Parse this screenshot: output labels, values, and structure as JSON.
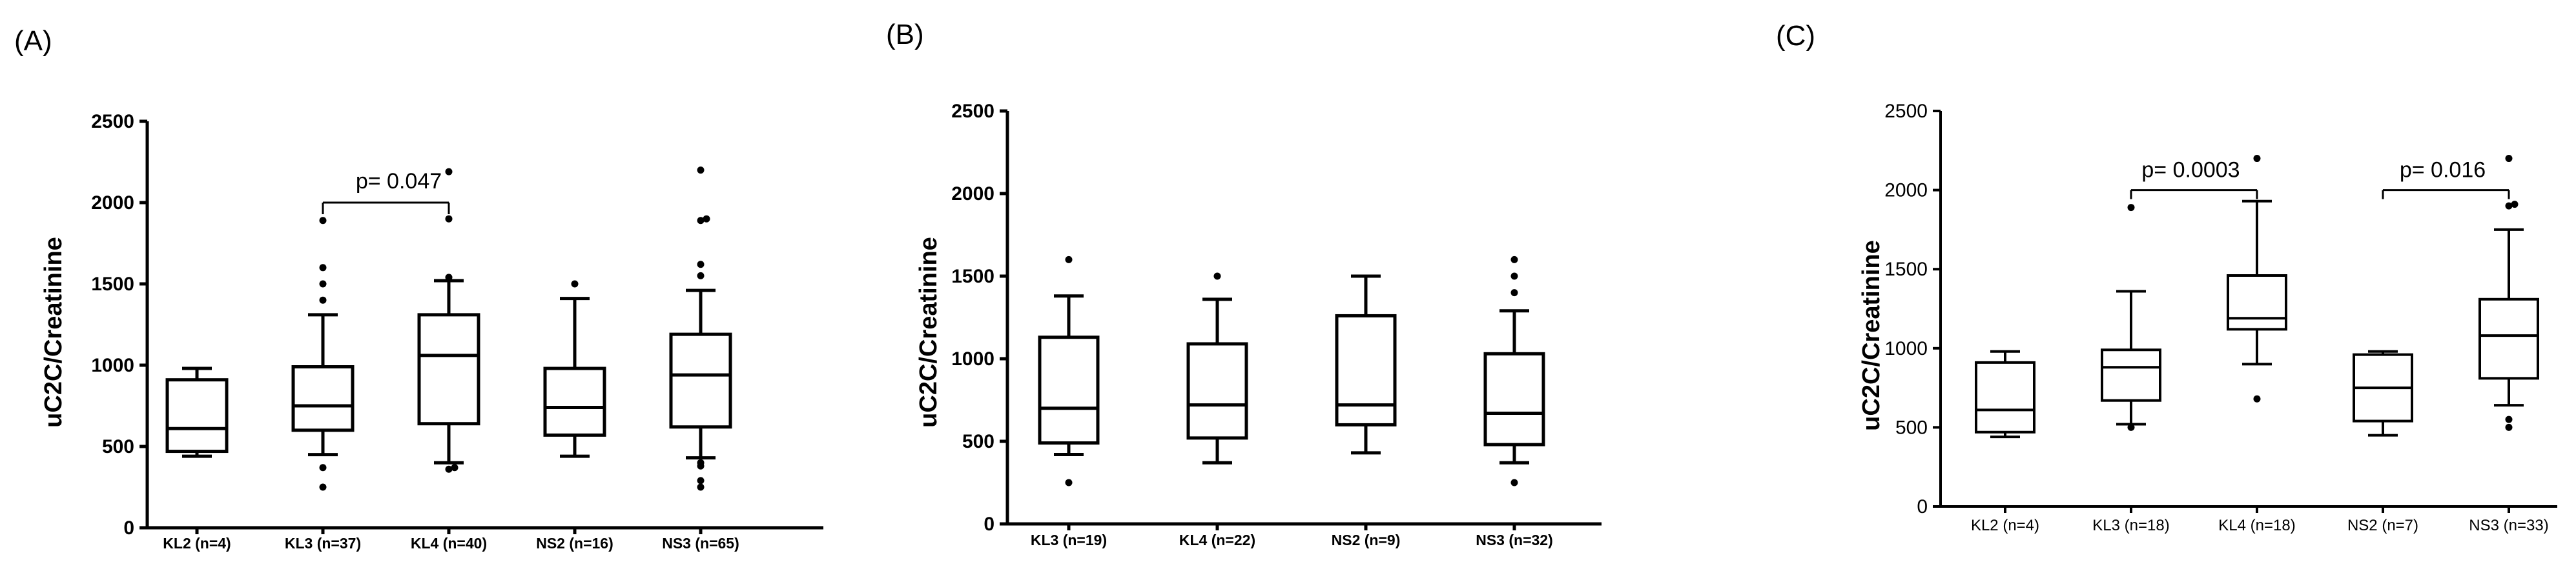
{
  "chart_data": [
    {
      "type": "box",
      "panel_label": "(A)",
      "title": "",
      "xlabel": "",
      "ylabel": "uC2C/Creatinine",
      "ylim": [
        0,
        2500
      ],
      "yticks": [
        0,
        500,
        1000,
        1500,
        2000,
        2500
      ],
      "bold_labels": true,
      "categories": [
        "KL2 (n=4)",
        "KL3 (n=37)",
        "KL4 (n=40)",
        "NS2 (n=16)",
        "NS3 (n=65)"
      ],
      "boxes": [
        {
          "whisker_low": 440,
          "q1": 470,
          "median": 610,
          "q3": 910,
          "whisker_high": 980,
          "outliers": []
        },
        {
          "whisker_low": 450,
          "q1": 600,
          "median": 750,
          "q3": 990,
          "whisker_high": 1310,
          "outliers": [
            250,
            370,
            1400,
            1500,
            1600,
            1890
          ]
        },
        {
          "whisker_low": 400,
          "q1": 640,
          "median": 1060,
          "q3": 1310,
          "whisker_high": 1520,
          "outliers": [
            360,
            370,
            1540,
            1900,
            2190
          ]
        },
        {
          "whisker_low": 440,
          "q1": 570,
          "median": 740,
          "q3": 980,
          "whisker_high": 1410,
          "outliers": [
            1500
          ]
        },
        {
          "whisker_low": 430,
          "q1": 620,
          "median": 940,
          "q3": 1190,
          "whisker_high": 1460,
          "outliers": [
            250,
            290,
            380,
            400,
            1550,
            1620,
            1890,
            1900,
            2200
          ]
        }
      ],
      "annotations": [
        {
          "text": "p= 0.047",
          "from": 1,
          "to": 2,
          "y": 2000
        }
      ]
    },
    {
      "type": "box",
      "panel_label": "(B)",
      "title": "",
      "xlabel": "",
      "ylabel": "uC2C/Creatinine",
      "ylim": [
        0,
        2500
      ],
      "yticks": [
        0,
        500,
        1000,
        1500,
        2000,
        2500
      ],
      "bold_labels": true,
      "categories": [
        "KL3 (n=19)",
        "KL4 (n=22)",
        "NS2 (n=9)",
        "NS3 (n=32)"
      ],
      "boxes": [
        {
          "whisker_low": 420,
          "q1": 490,
          "median": 700,
          "q3": 1130,
          "whisker_high": 1380,
          "outliers": [
            250,
            1600
          ]
        },
        {
          "whisker_low": 370,
          "q1": 520,
          "median": 720,
          "q3": 1090,
          "whisker_high": 1360,
          "outliers": [
            1500
          ]
        },
        {
          "whisker_low": 430,
          "q1": 600,
          "median": 720,
          "q3": 1260,
          "whisker_high": 1500,
          "outliers": []
        },
        {
          "whisker_low": 370,
          "q1": 480,
          "median": 670,
          "q3": 1030,
          "whisker_high": 1290,
          "outliers": [
            250,
            1400,
            1500,
            1600
          ]
        }
      ],
      "annotations": []
    },
    {
      "type": "box",
      "panel_label": "(C)",
      "title": "",
      "xlabel": "",
      "ylabel": "uC2C/Creatinine",
      "ylim": [
        0,
        2500
      ],
      "yticks": [
        0,
        500,
        1000,
        1500,
        2000,
        2500
      ],
      "bold_labels": false,
      "categories": [
        "KL2 (n=4)",
        "KL3 (n=18)",
        "KL4 (n=18)",
        "NS2 (n=7)",
        "NS3 (n=33)"
      ],
      "boxes": [
        {
          "whisker_low": 440,
          "q1": 470,
          "median": 610,
          "q3": 910,
          "whisker_high": 980,
          "outliers": []
        },
        {
          "whisker_low": 520,
          "q1": 670,
          "median": 880,
          "q3": 990,
          "whisker_high": 1360,
          "outliers": [
            500,
            1890
          ]
        },
        {
          "whisker_low": 900,
          "q1": 1120,
          "median": 1190,
          "q3": 1460,
          "whisker_high": 1930,
          "outliers": [
            680,
            2200
          ]
        },
        {
          "whisker_low": 450,
          "q1": 540,
          "median": 750,
          "q3": 960,
          "whisker_high": 980,
          "outliers": []
        },
        {
          "whisker_low": 640,
          "q1": 810,
          "median": 1080,
          "q3": 1310,
          "whisker_high": 1750,
          "outliers": [
            500,
            550,
            1900,
            1910,
            2200
          ]
        }
      ],
      "annotations": [
        {
          "text": "p= 0.0003",
          "from": 1,
          "to": 2,
          "y": 2000
        },
        {
          "text": "p= 0.016",
          "from": 3,
          "to": 4,
          "y": 2000
        }
      ]
    }
  ]
}
